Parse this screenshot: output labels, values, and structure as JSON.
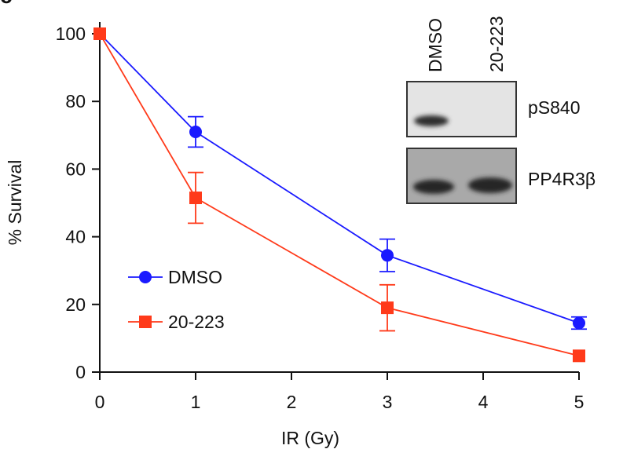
{
  "panel_label": "c",
  "colors": {
    "dmso": "#1a1aff",
    "treated": "#ff3a1a",
    "axis": "#111111"
  },
  "chart_data": {
    "type": "line",
    "title": "",
    "xlabel": "IR (Gy)",
    "ylabel": "% Survival",
    "xlim": [
      0,
      5
    ],
    "ylim": [
      0,
      100
    ],
    "x_ticks": [
      0,
      1,
      2,
      3,
      4,
      5
    ],
    "y_ticks": [
      0,
      20,
      40,
      60,
      80,
      100
    ],
    "grid": false,
    "legend_position": "lower-left",
    "series": [
      {
        "name": "DMSO",
        "marker": "circle",
        "x": [
          0,
          1,
          3,
          5
        ],
        "y": [
          100,
          71,
          34.5,
          14.5
        ],
        "err": [
          0,
          4.5,
          4.8,
          1.8
        ]
      },
      {
        "name": "20-223",
        "marker": "square",
        "x": [
          0,
          1,
          3,
          5
        ],
        "y": [
          100,
          51.5,
          19,
          4.8
        ],
        "err": [
          0,
          7.5,
          6.8,
          0
        ]
      }
    ]
  },
  "blot": {
    "lanes": [
      "DMSO",
      "20-223"
    ],
    "rows": [
      {
        "label": "pS840",
        "band_intensity": [
          1.0,
          0.0
        ]
      },
      {
        "label": "PP4R3β",
        "band_intensity": [
          1.0,
          1.0
        ]
      }
    ]
  }
}
